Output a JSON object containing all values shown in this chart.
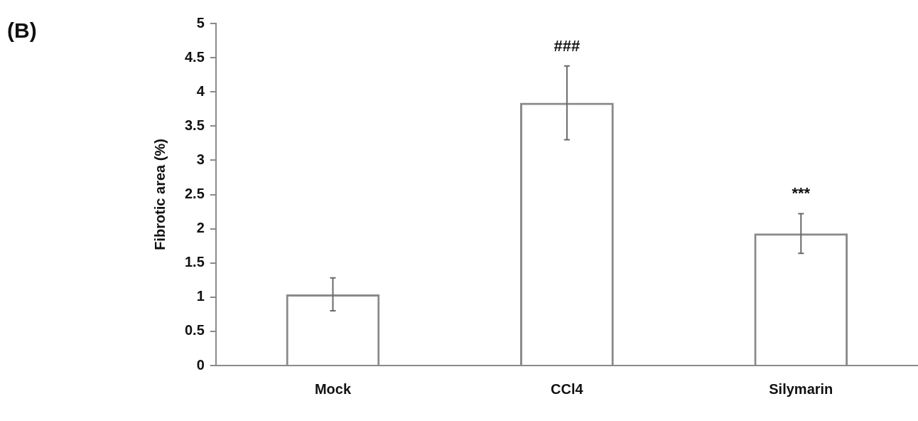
{
  "chart_data": {
    "type": "bar",
    "title": "(B)",
    "ylabel": "Fibrotic area (%)",
    "categories": [
      "Mock",
      "CCl4",
      "Silymarin"
    ],
    "values": [
      1.04,
      3.84,
      1.93
    ],
    "errors": [
      0.24,
      0.54,
      0.29
    ],
    "color": "#8a8a8a",
    "ylim": [
      0,
      5
    ],
    "yticks": [
      0,
      0.5,
      1,
      1.5,
      2,
      2.5,
      3,
      3.5,
      4,
      4.5,
      5
    ],
    "annotations": [
      {
        "text": "###",
        "x": "CCl4",
        "y": 4.38
      },
      {
        "text": "***",
        "x": "Silymarin",
        "y": 2.22
      }
    ],
    "grid": false,
    "legend": false
  }
}
